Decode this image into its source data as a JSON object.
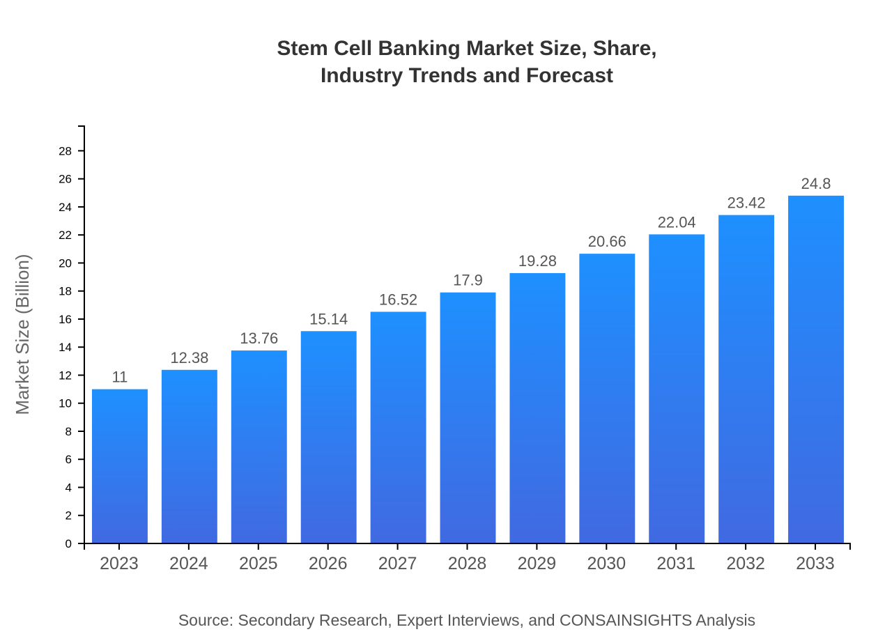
{
  "chart_data": {
    "type": "bar",
    "title_line1": "Stem Cell Banking Market Size, Share,",
    "title_line2": "Industry Trends and Forecast",
    "xlabel": "",
    "ylabel": "Market Size (Billion)",
    "categories": [
      "2023",
      "2024",
      "2025",
      "2026",
      "2027",
      "2028",
      "2029",
      "2030",
      "2031",
      "2032",
      "2033"
    ],
    "values": [
      11,
      12.38,
      13.76,
      15.14,
      16.52,
      17.9,
      19.28,
      20.66,
      22.04,
      23.42,
      24.8
    ],
    "ylim": [
      0,
      29.76
    ],
    "yticks": [
      0,
      2,
      4,
      6,
      8,
      10,
      12,
      14,
      16,
      18,
      20,
      22,
      24,
      26,
      28
    ],
    "grid": false,
    "bar_gradient": {
      "top": "#1E90FF",
      "bottom": "#4169E1"
    },
    "source": "Source: Secondary Research, Expert Interviews, and CONSAINSIGHTS Analysis"
  }
}
